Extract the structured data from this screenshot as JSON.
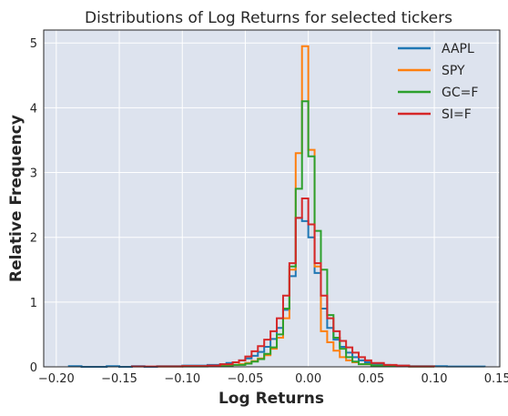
{
  "chart_data": {
    "type": "histogram-step",
    "title": "Distributions of Log Returns for selected tickers",
    "xlabel": "Log Returns",
    "ylabel": "Relative Frequency",
    "xlim": [
      -0.21,
      0.152
    ],
    "ylim": [
      0,
      5.2
    ],
    "xticks": [
      -0.2,
      -0.15,
      -0.1,
      -0.05,
      0.0,
      0.05,
      0.1,
      0.15
    ],
    "xtick_labels": [
      "−0.20",
      "−0.15",
      "−0.10",
      "−0.05",
      "0.00",
      "0.05",
      "0.10",
      "0.15"
    ],
    "yticks": [
      0,
      1,
      2,
      3,
      4,
      5
    ],
    "ytick_labels": [
      "0",
      "1",
      "2",
      "3",
      "4",
      "5"
    ],
    "grid": true,
    "background": "#dde3ee",
    "legend_position": "top-right",
    "series": [
      {
        "name": "AAPL",
        "color": "#1f77b4",
        "bin_edges": [
          -0.19,
          -0.18,
          -0.17,
          -0.16,
          -0.15,
          -0.14,
          -0.13,
          -0.12,
          -0.11,
          -0.1,
          -0.09,
          -0.08,
          -0.075,
          -0.07,
          -0.065,
          -0.06,
          -0.055,
          -0.05,
          -0.045,
          -0.04,
          -0.035,
          -0.03,
          -0.025,
          -0.02,
          -0.015,
          -0.01,
          -0.005,
          0.0,
          0.005,
          0.01,
          0.015,
          0.02,
          0.025,
          0.03,
          0.035,
          0.04,
          0.045,
          0.05,
          0.055,
          0.06,
          0.065,
          0.07,
          0.08,
          0.09,
          0.1,
          0.11,
          0.12,
          0.13,
          0.14
        ],
        "heights": [
          0.01,
          0.0,
          0.0,
          0.01,
          0.0,
          0.01,
          0.0,
          0.01,
          0.01,
          0.02,
          0.02,
          0.03,
          0.03,
          0.04,
          0.06,
          0.07,
          0.1,
          0.13,
          0.17,
          0.23,
          0.31,
          0.43,
          0.6,
          0.88,
          1.4,
          2.3,
          2.25,
          2.0,
          1.45,
          0.9,
          0.6,
          0.42,
          0.31,
          0.22,
          0.15,
          0.1,
          0.07,
          0.05,
          0.04,
          0.03,
          0.02,
          0.02,
          0.01,
          0.01,
          0.01,
          0.005,
          0.005,
          0.005
        ]
      },
      {
        "name": "SPY",
        "color": "#ff7f0e",
        "bin_edges": [
          -0.12,
          -0.1,
          -0.08,
          -0.07,
          -0.06,
          -0.055,
          -0.05,
          -0.045,
          -0.04,
          -0.035,
          -0.03,
          -0.025,
          -0.02,
          -0.015,
          -0.01,
          -0.005,
          0.0,
          0.005,
          0.01,
          0.015,
          0.02,
          0.025,
          0.03,
          0.035,
          0.04,
          0.05,
          0.06,
          0.08,
          0.1
        ],
        "heights": [
          0.005,
          0.01,
          0.01,
          0.02,
          0.03,
          0.04,
          0.06,
          0.09,
          0.13,
          0.18,
          0.28,
          0.45,
          0.75,
          1.5,
          3.3,
          4.95,
          3.35,
          1.55,
          0.55,
          0.38,
          0.25,
          0.15,
          0.1,
          0.07,
          0.04,
          0.02,
          0.01,
          0.005
        ]
      },
      {
        "name": "GC=F",
        "color": "#2ca02c",
        "bin_edges": [
          -0.1,
          -0.08,
          -0.06,
          -0.05,
          -0.045,
          -0.04,
          -0.035,
          -0.03,
          -0.025,
          -0.02,
          -0.015,
          -0.01,
          -0.005,
          0.0,
          0.005,
          0.01,
          0.015,
          0.02,
          0.025,
          0.03,
          0.035,
          0.04,
          0.05,
          0.06,
          0.08,
          0.1
        ],
        "heights": [
          0.005,
          0.01,
          0.03,
          0.05,
          0.08,
          0.12,
          0.2,
          0.3,
          0.5,
          0.9,
          1.55,
          2.75,
          4.1,
          3.25,
          2.1,
          1.5,
          0.8,
          0.45,
          0.28,
          0.15,
          0.08,
          0.04,
          0.02,
          0.01,
          0.005
        ]
      },
      {
        "name": "SI=F",
        "color": "#d62728",
        "bin_edges": [
          -0.14,
          -0.1,
          -0.08,
          -0.07,
          -0.06,
          -0.055,
          -0.05,
          -0.045,
          -0.04,
          -0.035,
          -0.03,
          -0.025,
          -0.02,
          -0.015,
          -0.01,
          -0.005,
          0.0,
          0.005,
          0.01,
          0.015,
          0.02,
          0.025,
          0.03,
          0.035,
          0.04,
          0.045,
          0.05,
          0.06,
          0.07,
          0.08,
          0.1
        ],
        "heights": [
          0.005,
          0.01,
          0.02,
          0.04,
          0.07,
          0.1,
          0.16,
          0.24,
          0.32,
          0.42,
          0.55,
          0.75,
          1.1,
          1.6,
          2.3,
          2.6,
          2.2,
          1.6,
          1.1,
          0.75,
          0.55,
          0.4,
          0.3,
          0.22,
          0.15,
          0.1,
          0.06,
          0.03,
          0.02,
          0.005
        ]
      }
    ]
  }
}
